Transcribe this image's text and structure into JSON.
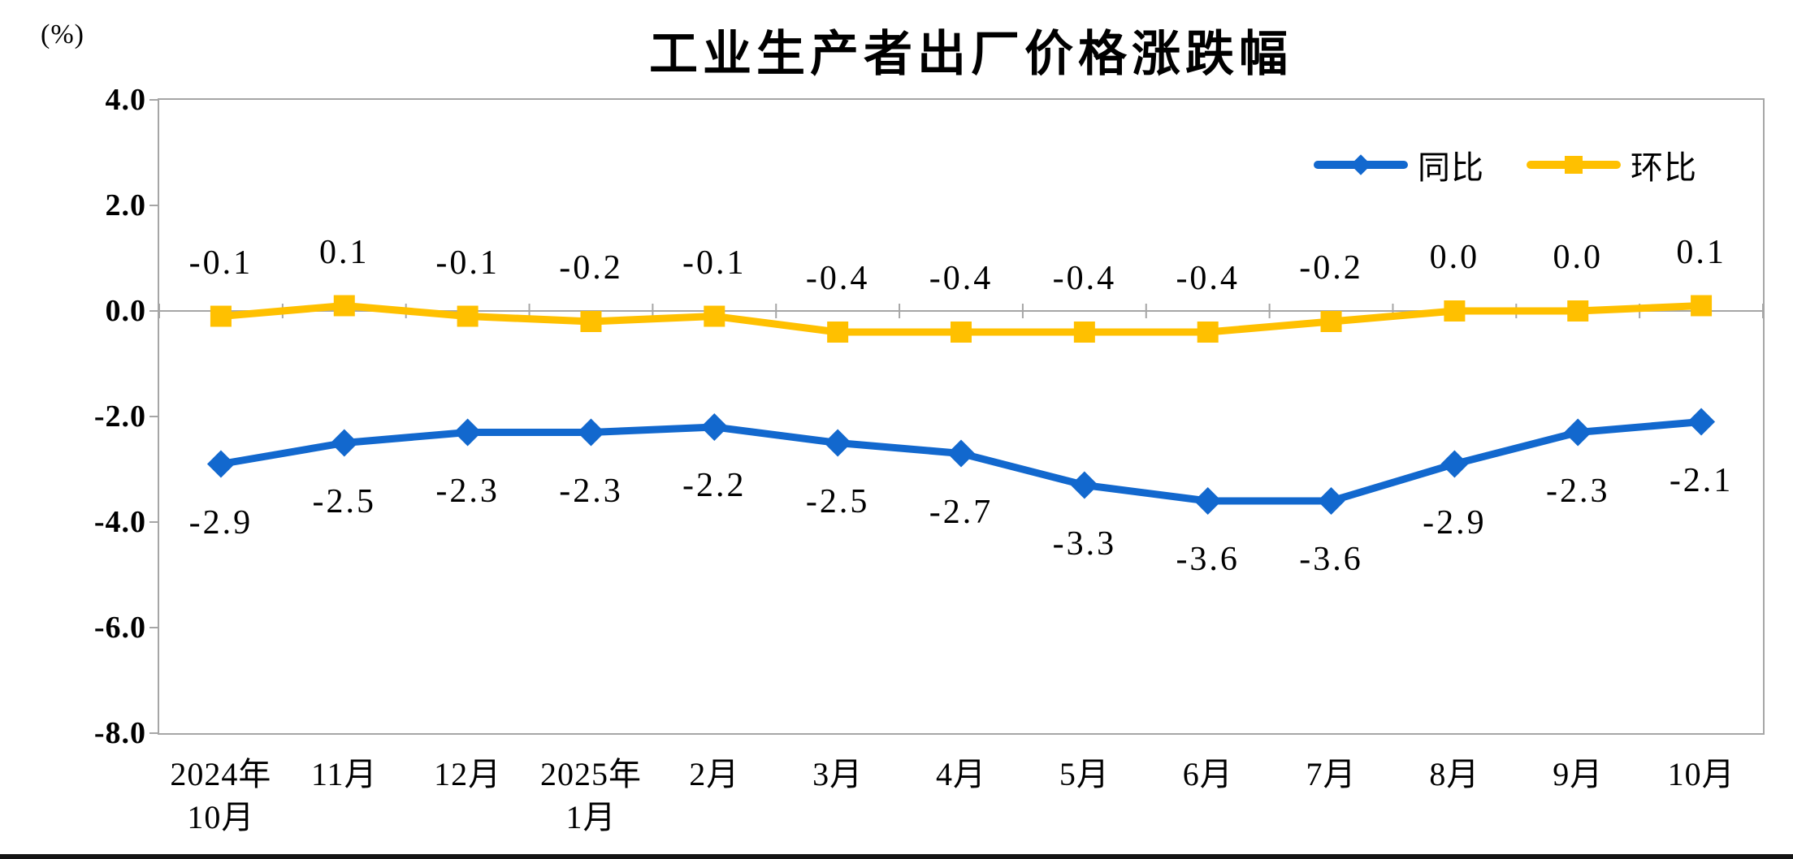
{
  "chart_data": {
    "type": "line",
    "title": "工业生产者出厂价格涨跌幅",
    "unit_label": "(%)",
    "categories": [
      "2024年\n10月",
      "11月",
      "12月",
      "2025年\n1月",
      "2月",
      "3月",
      "4月",
      "5月",
      "6月",
      "7月",
      "8月",
      "9月",
      "10月"
    ],
    "series": [
      {
        "id": "yoy",
        "name": "同比",
        "color": "#1268CE",
        "marker": "diamond",
        "label_position": "below",
        "values": [
          -2.9,
          -2.5,
          -2.3,
          -2.3,
          -2.2,
          -2.5,
          -2.7,
          -3.3,
          -3.6,
          -3.6,
          -2.9,
          -2.3,
          -2.1
        ]
      },
      {
        "id": "mom",
        "name": "环比",
        "color": "#FFC000",
        "marker": "square",
        "label_position": "above",
        "values": [
          -0.1,
          0.1,
          -0.1,
          -0.2,
          -0.1,
          -0.4,
          -0.4,
          -0.4,
          -0.4,
          -0.2,
          0.0,
          0.0,
          0.1
        ]
      }
    ],
    "ylim": [
      -8.0,
      4.0
    ],
    "ytick_labels": [
      "4.0",
      "2.0",
      "0.0",
      "-2.0",
      "-4.0",
      "-6.0",
      "-8.0"
    ],
    "grid": false,
    "zero_line": true,
    "data_labels": true,
    "legend_position": "top-right-inside",
    "axis_color": "#A6A6A6",
    "text_color": "#000000"
  }
}
